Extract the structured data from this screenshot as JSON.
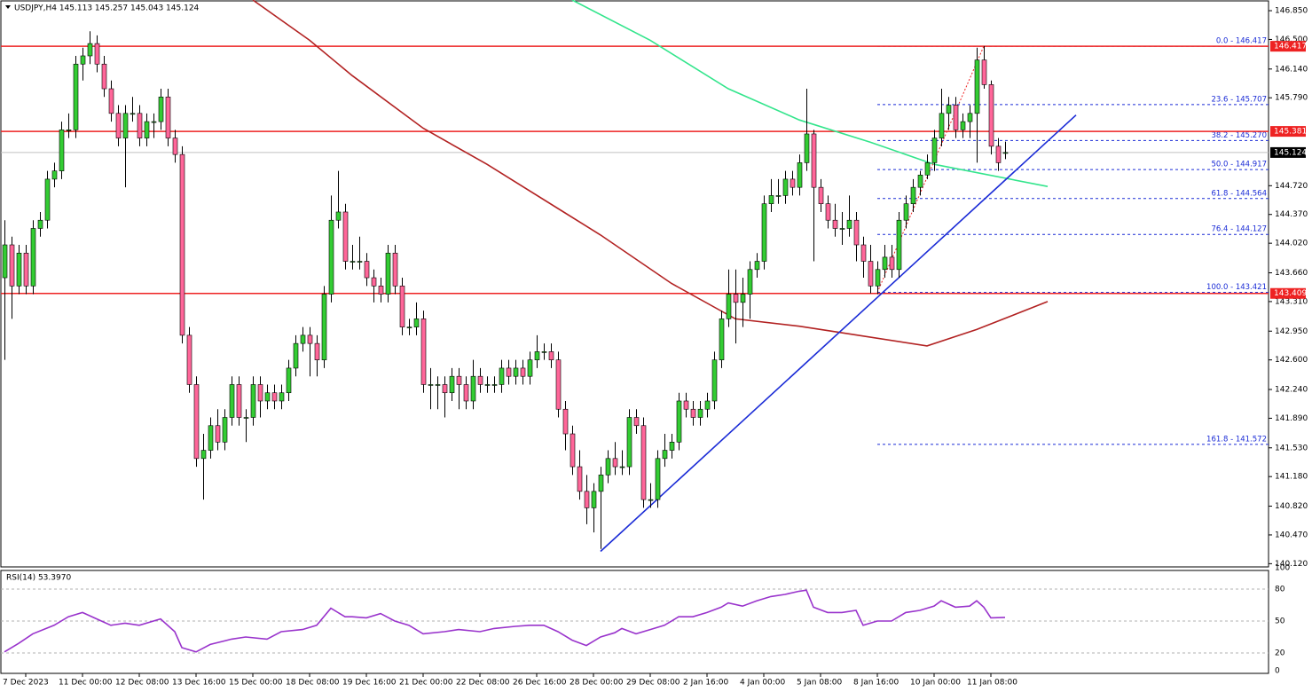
{
  "chart_data": {
    "type": "candlestick",
    "title": "USDJPY,H4 145.113 145.257 145.043 145.124",
    "categories": [
      null,
      null,
      null,
      "7 Dec 2023",
      null,
      null,
      null,
      null,
      null,
      null,
      null,
      "11 Dec 00:00",
      null,
      null,
      null,
      null,
      null,
      null,
      null,
      "12 Dec 08:00",
      null,
      null,
      null,
      null,
      null,
      null,
      null,
      "13 Dec 16:00",
      null,
      null,
      null,
      null,
      null,
      null,
      null,
      "15 Dec 00:00",
      null,
      null,
      null,
      null,
      null,
      null,
      null,
      "18 Dec 08:00",
      null,
      null,
      null,
      null,
      null,
      null,
      null,
      "19 Dec 16:00",
      null,
      null,
      null,
      null,
      null,
      null,
      null,
      "21 Dec 00:00",
      null,
      null,
      null,
      null,
      null,
      null,
      null,
      "22 Dec 08:00",
      null,
      null,
      null,
      null,
      null,
      null,
      null,
      "26 Dec 16:00",
      null,
      null,
      null,
      null,
      null,
      null,
      null,
      "28 Dec 00:00",
      null,
      null,
      null,
      null,
      null,
      null,
      null,
      "29 Dec 08:00",
      null,
      null,
      null,
      null,
      null,
      null,
      null,
      "2 Jan 16:00",
      null,
      null,
      null,
      null,
      null,
      null,
      null,
      "4 Jan 00:00",
      null,
      null,
      null,
      null,
      null,
      null,
      null,
      "5 Jan 08:00",
      null,
      null,
      null,
      null,
      null,
      null,
      null,
      "8 Jan 16:00",
      null,
      null,
      null,
      null,
      null,
      null,
      null,
      "10 Jan 00:00",
      null,
      null,
      null,
      null,
      null,
      null,
      null,
      "11 Jan 08:00",
      null,
      null
    ],
    "ohlc": [
      [
        143.6,
        144.3,
        142.6,
        144.0
      ],
      [
        144.0,
        144.1,
        143.1,
        143.5
      ],
      [
        143.5,
        144.0,
        143.4,
        143.9
      ],
      [
        143.9,
        144.0,
        143.4,
        143.5
      ],
      [
        143.5,
        144.3,
        143.4,
        144.2
      ],
      [
        144.2,
        144.4,
        144.1,
        144.3
      ],
      [
        144.3,
        144.9,
        144.2,
        144.8
      ],
      [
        144.8,
        145.0,
        144.7,
        144.9
      ],
      [
        144.9,
        145.5,
        144.8,
        145.4
      ],
      [
        145.4,
        145.6,
        145.3,
        145.4
      ],
      [
        145.4,
        146.3,
        145.3,
        146.2
      ],
      [
        146.2,
        146.4,
        146.0,
        146.3
      ],
      [
        146.3,
        146.6,
        146.2,
        146.45
      ],
      [
        146.45,
        146.55,
        146.1,
        146.2
      ],
      [
        146.2,
        146.3,
        145.8,
        145.9
      ],
      [
        145.9,
        146.0,
        145.5,
        145.6
      ],
      [
        145.6,
        145.7,
        145.2,
        145.3
      ],
      [
        145.3,
        145.7,
        144.7,
        145.6
      ],
      [
        145.6,
        145.8,
        145.5,
        145.6
      ],
      [
        145.6,
        145.7,
        145.2,
        145.3
      ],
      [
        145.3,
        145.6,
        145.2,
        145.5
      ],
      [
        145.5,
        145.6,
        145.3,
        145.5
      ],
      [
        145.5,
        145.9,
        145.4,
        145.8
      ],
      [
        145.8,
        145.9,
        145.2,
        145.3
      ],
      [
        145.3,
        145.4,
        145.0,
        145.1
      ],
      [
        145.1,
        145.2,
        142.8,
        142.9
      ],
      [
        142.9,
        143.0,
        142.2,
        142.3
      ],
      [
        142.3,
        142.4,
        141.3,
        141.4
      ],
      [
        141.4,
        141.7,
        140.9,
        141.5
      ],
      [
        141.5,
        141.9,
        141.4,
        141.8
      ],
      [
        141.8,
        142.0,
        141.5,
        141.6
      ],
      [
        141.6,
        142.0,
        141.5,
        141.9
      ],
      [
        141.9,
        142.4,
        141.8,
        142.3
      ],
      [
        142.3,
        142.4,
        141.8,
        141.9
      ],
      [
        141.9,
        142.0,
        141.6,
        141.9
      ],
      [
        141.9,
        142.4,
        141.8,
        142.3
      ],
      [
        142.3,
        142.4,
        141.9,
        142.1
      ],
      [
        142.1,
        142.3,
        142.0,
        142.2
      ],
      [
        142.2,
        142.3,
        142.0,
        142.1
      ],
      [
        142.1,
        142.3,
        142.0,
        142.2
      ],
      [
        142.2,
        142.6,
        142.1,
        142.5
      ],
      [
        142.5,
        142.9,
        142.4,
        142.8
      ],
      [
        142.8,
        143.0,
        142.7,
        142.9
      ],
      [
        142.9,
        143.0,
        142.4,
        142.8
      ],
      [
        142.8,
        142.9,
        142.4,
        142.6
      ],
      [
        142.6,
        143.5,
        142.5,
        143.4
      ],
      [
        143.4,
        144.6,
        143.3,
        144.3
      ],
      [
        144.3,
        144.9,
        144.2,
        144.4
      ],
      [
        144.4,
        144.5,
        143.7,
        143.8
      ],
      [
        143.8,
        144.0,
        143.7,
        143.8
      ],
      [
        143.8,
        144.1,
        143.7,
        143.8
      ],
      [
        143.8,
        143.9,
        143.5,
        143.6
      ],
      [
        143.6,
        143.7,
        143.3,
        143.5
      ],
      [
        143.5,
        143.6,
        143.3,
        143.4
      ],
      [
        143.4,
        144.0,
        143.3,
        143.9
      ],
      [
        143.9,
        144.0,
        143.4,
        143.5
      ],
      [
        143.5,
        143.6,
        142.9,
        143.0
      ],
      [
        143.0,
        143.1,
        142.9,
        143.0
      ],
      [
        143.0,
        143.3,
        142.9,
        143.1
      ],
      [
        143.1,
        143.2,
        142.2,
        142.3
      ],
      [
        142.3,
        142.5,
        142.0,
        142.3
      ],
      [
        142.3,
        142.4,
        142.0,
        142.3
      ],
      [
        142.3,
        142.4,
        141.9,
        142.2
      ],
      [
        142.2,
        142.5,
        142.1,
        142.4
      ],
      [
        142.4,
        142.5,
        142.0,
        142.3
      ],
      [
        142.3,
        142.4,
        142.0,
        142.1
      ],
      [
        142.1,
        142.6,
        142.0,
        142.4
      ],
      [
        142.4,
        142.5,
        142.2,
        142.3
      ],
      [
        142.3,
        142.4,
        142.2,
        142.3
      ],
      [
        142.3,
        142.4,
        142.2,
        142.3
      ],
      [
        142.3,
        142.6,
        142.2,
        142.5
      ],
      [
        142.5,
        142.6,
        142.3,
        142.4
      ],
      [
        142.4,
        142.6,
        142.3,
        142.5
      ],
      [
        142.5,
        142.6,
        142.3,
        142.4
      ],
      [
        142.4,
        142.7,
        142.3,
        142.6
      ],
      [
        142.6,
        142.9,
        142.5,
        142.7
      ],
      [
        142.7,
        142.8,
        142.6,
        142.7
      ],
      [
        142.7,
        142.8,
        142.5,
        142.6
      ],
      [
        142.6,
        142.7,
        141.9,
        142.0
      ],
      [
        142.0,
        142.1,
        141.5,
        141.7
      ],
      [
        141.7,
        141.8,
        141.2,
        141.3
      ],
      [
        141.3,
        141.5,
        140.9,
        141.0
      ],
      [
        141.0,
        141.2,
        140.6,
        140.8
      ],
      [
        140.8,
        141.1,
        140.5,
        141.0
      ],
      [
        141.0,
        141.3,
        140.3,
        141.2
      ],
      [
        141.2,
        141.5,
        141.1,
        141.4
      ],
      [
        141.4,
        141.6,
        141.2,
        141.3
      ],
      [
        141.3,
        141.5,
        141.2,
        141.3
      ],
      [
        141.3,
        142.0,
        141.2,
        141.9
      ],
      [
        141.9,
        142.0,
        141.7,
        141.8
      ],
      [
        141.8,
        141.9,
        140.8,
        140.9
      ],
      [
        140.9,
        141.1,
        140.8,
        140.9
      ],
      [
        140.9,
        141.5,
        140.8,
        141.4
      ],
      [
        141.4,
        141.7,
        141.3,
        141.5
      ],
      [
        141.5,
        141.7,
        141.4,
        141.6
      ],
      [
        141.6,
        142.2,
        141.5,
        142.1
      ],
      [
        142.1,
        142.2,
        141.9,
        142.0
      ],
      [
        142.0,
        142.1,
        141.8,
        141.9
      ],
      [
        141.9,
        142.1,
        141.8,
        142.0
      ],
      [
        142.0,
        142.2,
        141.9,
        142.1
      ],
      [
        142.1,
        142.7,
        142.0,
        142.6
      ],
      [
        142.6,
        143.2,
        142.5,
        143.1
      ],
      [
        143.1,
        143.7,
        143.0,
        143.4
      ],
      [
        143.4,
        143.7,
        142.8,
        143.3
      ],
      [
        143.3,
        143.6,
        143.0,
        143.4
      ],
      [
        143.4,
        143.8,
        143.1,
        143.7
      ],
      [
        143.7,
        143.9,
        143.6,
        143.8
      ],
      [
        143.8,
        144.6,
        143.7,
        144.5
      ],
      [
        144.5,
        144.8,
        144.4,
        144.6
      ],
      [
        144.6,
        144.8,
        144.5,
        144.6
      ],
      [
        144.6,
        144.9,
        144.5,
        144.8
      ],
      [
        144.8,
        144.9,
        144.6,
        144.7
      ],
      [
        144.7,
        145.1,
        144.6,
        145.0
      ],
      [
        145.0,
        145.9,
        144.9,
        145.35
      ],
      [
        145.35,
        145.4,
        143.8,
        144.7
      ],
      [
        144.7,
        144.8,
        144.4,
        144.5
      ],
      [
        144.5,
        144.6,
        144.2,
        144.3
      ],
      [
        144.3,
        144.5,
        144.1,
        144.2
      ],
      [
        144.2,
        144.4,
        144.0,
        144.2
      ],
      [
        144.2,
        144.6,
        144.1,
        144.3
      ],
      [
        144.3,
        144.4,
        143.8,
        144.0
      ],
      [
        144.0,
        144.1,
        143.6,
        143.8
      ],
      [
        143.8,
        144.0,
        143.41,
        143.5
      ],
      [
        143.5,
        143.8,
        143.4,
        143.7
      ],
      [
        143.7,
        144.0,
        143.6,
        143.85
      ],
      [
        143.85,
        144.0,
        143.6,
        143.7
      ],
      [
        143.7,
        144.4,
        143.6,
        144.3
      ],
      [
        144.3,
        144.6,
        144.2,
        144.5
      ],
      [
        144.5,
        144.8,
        144.4,
        144.7
      ],
      [
        144.7,
        144.9,
        144.6,
        144.85
      ],
      [
        144.85,
        145.1,
        144.8,
        145.0
      ],
      [
        145.0,
        145.4,
        144.9,
        145.3
      ],
      [
        145.3,
        145.9,
        145.2,
        145.6
      ],
      [
        145.6,
        145.8,
        145.4,
        145.7
      ],
      [
        145.7,
        145.8,
        145.3,
        145.4
      ],
      [
        145.4,
        145.6,
        145.3,
        145.5
      ],
      [
        145.5,
        145.7,
        145.3,
        145.6
      ],
      [
        145.6,
        146.4,
        145.0,
        146.25
      ],
      [
        146.25,
        146.42,
        145.9,
        145.95
      ],
      [
        145.95,
        146.0,
        145.1,
        145.2
      ],
      [
        145.2,
        145.3,
        144.9,
        145.0
      ],
      [
        145.113,
        145.257,
        145.043,
        145.124
      ]
    ],
    "up_color": "#33cc33",
    "down_color": "#ff6699",
    "ylim": [
      140.07,
      146.98
    ],
    "yticks": [
      {
        "value": 146.85,
        "label": "146.850"
      },
      {
        "value": 146.5,
        "label": "146.500"
      },
      {
        "value": 146.14,
        "label": "146.140"
      },
      {
        "value": 145.79,
        "label": "145.790"
      },
      {
        "value": 144.72,
        "label": "144.720"
      },
      {
        "value": 144.37,
        "label": "144.370"
      },
      {
        "value": 144.02,
        "label": "144.020"
      },
      {
        "value": 143.66,
        "label": "143.660"
      },
      {
        "value": 143.31,
        "label": "143.310"
      },
      {
        "value": 142.95,
        "label": "142.950"
      },
      {
        "value": 142.6,
        "label": "142.600"
      },
      {
        "value": 142.24,
        "label": "142.240"
      },
      {
        "value": 141.89,
        "label": "141.890"
      },
      {
        "value": 141.53,
        "label": "141.530"
      },
      {
        "value": 141.18,
        "label": "141.180"
      },
      {
        "value": 140.82,
        "label": "140.820"
      },
      {
        "value": 140.47,
        "label": "140.470"
      },
      {
        "value": 140.12,
        "label": "140.120"
      }
    ],
    "hlines": [
      {
        "value": 146.417,
        "color": "#ee2222"
      },
      {
        "value": 145.381,
        "color": "#ee2222"
      },
      {
        "value": 143.409,
        "color": "#ee2222"
      },
      {
        "value": 145.124,
        "color": "#c0c0c0",
        "tag_color": "#000000"
      }
    ],
    "lines": [
      {
        "color": "#b22222",
        "x": [
          35,
          43,
          49,
          59,
          68,
          84,
          94,
          103,
          112,
          118,
          130,
          137,
          147
        ],
        "values": [
          146.98,
          146.49,
          146.06,
          145.42,
          144.98,
          144.12,
          143.53,
          143.1,
          143.01,
          142.93,
          142.77,
          142.97,
          143.31
        ]
      },
      {
        "color": "#33e58c",
        "x": [
          80,
          91,
          102,
          112,
          122,
          131,
          147
        ],
        "values": [
          146.98,
          146.49,
          145.9,
          145.52,
          145.25,
          144.98,
          144.71
        ]
      },
      {
        "color": "#1a2bd6",
        "x": [
          84,
          151
        ],
        "values": [
          140.27,
          145.58
        ]
      },
      {
        "color": "#ee2222",
        "dashed": true,
        "x": [
          123,
          138
        ],
        "values": [
          143.421,
          146.417
        ]
      }
    ],
    "fib_start": 123,
    "fib_color": "#1a2bd6",
    "fib_levels": [
      {
        "label": "0.0 - 146.417",
        "value": 146.417
      },
      {
        "label": "23.6 - 145.707",
        "value": 145.707
      },
      {
        "label": "38.2 - 145.270",
        "value": 145.27
      },
      {
        "label": "50.0 - 144.917",
        "value": 144.917
      },
      {
        "label": "61.8 - 144.564",
        "value": 144.564
      },
      {
        "label": "76.4 - 144.127",
        "value": 144.127
      },
      {
        "label": "100.0 - 143.421",
        "value": 143.421
      },
      {
        "label": "161.8 - 141.572",
        "value": 141.572
      }
    ],
    "rsi": {
      "label": "RSI(14) 53.3970",
      "color": "#9933cc",
      "ylim": [
        0,
        100
      ],
      "yticks": [
        100,
        80,
        50,
        20,
        0
      ],
      "x": [
        0,
        2,
        4,
        7,
        9,
        11,
        13,
        15,
        17,
        19,
        22,
        24,
        25,
        27,
        29,
        32,
        34,
        37,
        39,
        42,
        44,
        46,
        48,
        49,
        51,
        53,
        55,
        57,
        59,
        62,
        64,
        67,
        69,
        72,
        74,
        76,
        78,
        80,
        82,
        84,
        86,
        87,
        89,
        91,
        93,
        95,
        97,
        99,
        101,
        102,
        104,
        106,
        108,
        110,
        112,
        113,
        114,
        116,
        118,
        120,
        121,
        123,
        125,
        127,
        129,
        131,
        132,
        134,
        136,
        137,
        138,
        139,
        141
      ],
      "values": [
        21,
        29,
        38,
        46,
        54,
        58,
        52,
        46,
        48,
        46,
        52,
        40,
        25,
        21,
        28,
        33,
        35,
        33,
        40,
        42,
        46,
        62,
        54,
        54,
        53,
        57,
        50,
        46,
        38,
        40,
        42,
        40,
        43,
        45,
        46,
        46,
        40,
        32,
        27,
        35,
        39,
        43,
        38,
        42,
        46,
        54,
        54,
        58,
        63,
        67,
        64,
        69,
        73,
        75,
        78,
        79,
        63,
        58,
        58,
        60,
        46,
        50,
        50,
        58,
        60,
        64,
        69,
        63,
        64,
        69,
        63,
        53,
        53.397
      ]
    }
  }
}
